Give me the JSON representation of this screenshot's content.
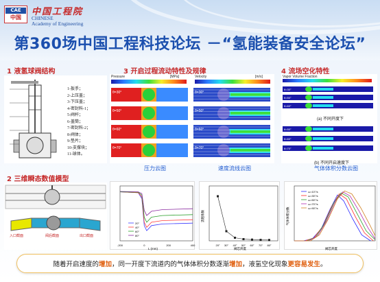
{
  "header": {
    "logo_text_top": "CAE",
    "logo_text_bottom": "中国",
    "org_cn": "中国工程院",
    "org_en_line1": "CHINESE",
    "org_en_line2": "Academy of Engineering",
    "title": "第360场中国工程科技论坛 －“氢能装备安全论坛”"
  },
  "sections": {
    "s1": "1 液氢球阀结构",
    "s2": "2 三维瞬态数值模型",
    "s3": "3 开启过程流动特性及规律",
    "s4": "4 流场空化特性"
  },
  "valve_parts": [
    "1-扳手；",
    "2-上压盖；",
    "3-下压盖；",
    "4-密封料-1；",
    "5-阀杆；",
    "6-盖筒；",
    "7-密封料-2；",
    "8-阀体；",
    "9-垫片；",
    "10-支撑块；",
    "11-球体。"
  ],
  "captions": {
    "pressure": "压力云图",
    "velocity": "速度流线云图",
    "gas_fraction": "气体体积分数云图"
  },
  "contour_labels": {
    "pressure_head": "Pressure",
    "pressure_unit": "[MPa]",
    "velocity_head": "Velocity",
    "velocity_unit": "[m/s]",
    "vapor_head": "Vapor Volume Fraction",
    "angles": [
      "θ=30°",
      "θ=50°",
      "θ=60°",
      "θ=70°"
    ],
    "sub_a": "(a) 不同开度下",
    "sub_b": "(b) 不同开启速度下"
  },
  "model_labels": {
    "inlet": "入口截面",
    "outlet": "出口截面",
    "outlet2": "阀后截面"
  },
  "conclusion": {
    "p1": "随着开启速度的",
    "h1": "增加",
    "p2": "，同一开度下流道内的气体体积分数逐渐",
    "h2": "增加",
    "p3": "，液氢空化现象",
    "h3": "更容易发生",
    "p4": "。"
  },
  "chart_data": [
    {
      "type": "line",
      "title": "",
      "xlabel": "L (mm)",
      "ylabel": "压力 (MPa)",
      "xlim": [
        -200,
        400
      ],
      "ylim": [
        0.0,
        0.65
      ],
      "legend": [
        "20°",
        "40°",
        "60°",
        "80°"
      ],
      "series": [
        {
          "name": "20°",
          "color": "#3a3aff",
          "points": [
            [
              -200,
              0.58
            ],
            [
              -50,
              0.57
            ],
            [
              -20,
              0.5
            ],
            [
              0,
              0.18
            ],
            [
              20,
              0.12
            ],
            [
              60,
              0.18
            ],
            [
              150,
              0.2
            ],
            [
              400,
              0.21
            ]
          ]
        },
        {
          "name": "40°",
          "color": "#ff3a3a",
          "points": [
            [
              -200,
              0.58
            ],
            [
              -50,
              0.57
            ],
            [
              -20,
              0.52
            ],
            [
              0,
              0.22
            ],
            [
              20,
              0.16
            ],
            [
              60,
              0.22
            ],
            [
              150,
              0.24
            ],
            [
              400,
              0.25
            ]
          ]
        },
        {
          "name": "60°",
          "color": "#2aa02a",
          "points": [
            [
              -200,
              0.58
            ],
            [
              -50,
              0.575
            ],
            [
              -20,
              0.54
            ],
            [
              0,
              0.28
            ],
            [
              20,
              0.22
            ],
            [
              60,
              0.28
            ],
            [
              150,
              0.3
            ],
            [
              400,
              0.31
            ]
          ]
        },
        {
          "name": "80°",
          "color": "#8a2aa0",
          "points": [
            [
              -200,
              0.585
            ],
            [
              -50,
              0.58
            ],
            [
              -20,
              0.56
            ],
            [
              0,
              0.36
            ],
            [
              20,
              0.3
            ],
            [
              60,
              0.35
            ],
            [
              150,
              0.37
            ],
            [
              400,
              0.38
            ]
          ]
        }
      ]
    },
    {
      "type": "scatter",
      "title": "",
      "xlabel": "阀芯开度",
      "ylabel": "流阻系数",
      "x": [
        20,
        30,
        40,
        50,
        60,
        70,
        80
      ],
      "y": [
        650,
        140,
        45,
        25,
        18,
        14,
        12
      ],
      "ylim": [
        0,
        800
      ]
    },
    {
      "type": "line",
      "title": "",
      "xlabel": "阀芯开度",
      "ylabel": "气体体积分数",
      "xlim": [
        0,
        90
      ],
      "ylim": [
        0.0,
        0.55
      ],
      "legend": [
        "ω=10°/s",
        "ω=30°/s",
        "ω=50°/s",
        "ω=70°/s",
        "ω=90°/s"
      ],
      "series": [
        {
          "name": "ω=10°/s",
          "color": "#2a2aff",
          "points": [
            [
              0,
              0
            ],
            [
              10,
              0
            ],
            [
              20,
              0.02
            ],
            [
              30,
              0.12
            ],
            [
              40,
              0.32
            ],
            [
              48,
              0.46
            ],
            [
              55,
              0.4
            ],
            [
              65,
              0.22
            ],
            [
              75,
              0.06
            ],
            [
              85,
              0
            ]
          ]
        },
        {
          "name": "ω=30°/s",
          "color": "#ff2a2a",
          "points": [
            [
              0,
              0
            ],
            [
              12,
              0
            ],
            [
              22,
              0.03
            ],
            [
              32,
              0.15
            ],
            [
              42,
              0.35
            ],
            [
              50,
              0.47
            ],
            [
              58,
              0.42
            ],
            [
              68,
              0.24
            ],
            [
              78,
              0.08
            ],
            [
              88,
              0
            ]
          ]
        },
        {
          "name": "ω=50°/s",
          "color": "#2aa02a",
          "points": [
            [
              0,
              0
            ],
            [
              14,
              0
            ],
            [
              24,
              0.04
            ],
            [
              34,
              0.18
            ],
            [
              44,
              0.38
            ],
            [
              52,
              0.48
            ],
            [
              60,
              0.44
            ],
            [
              70,
              0.27
            ],
            [
              80,
              0.1
            ],
            [
              90,
              0.01
            ]
          ]
        },
        {
          "name": "ω=70°/s",
          "color": "#b02ab0",
          "points": [
            [
              0,
              0
            ],
            [
              16,
              0
            ],
            [
              26,
              0.05
            ],
            [
              36,
              0.2
            ],
            [
              46,
              0.4
            ],
            [
              54,
              0.49
            ],
            [
              62,
              0.45
            ],
            [
              72,
              0.3
            ],
            [
              82,
              0.13
            ],
            [
              90,
              0.02
            ]
          ]
        },
        {
          "name": "ω=90°/s",
          "color": "#d08020",
          "points": [
            [
              0,
              0
            ],
            [
              18,
              0
            ],
            [
              28,
              0.06
            ],
            [
              38,
              0.22
            ],
            [
              48,
              0.42
            ],
            [
              56,
              0.5
            ],
            [
              64,
              0.47
            ],
            [
              74,
              0.33
            ],
            [
              84,
              0.16
            ],
            [
              90,
              0.05
            ]
          ]
        }
      ]
    }
  ]
}
